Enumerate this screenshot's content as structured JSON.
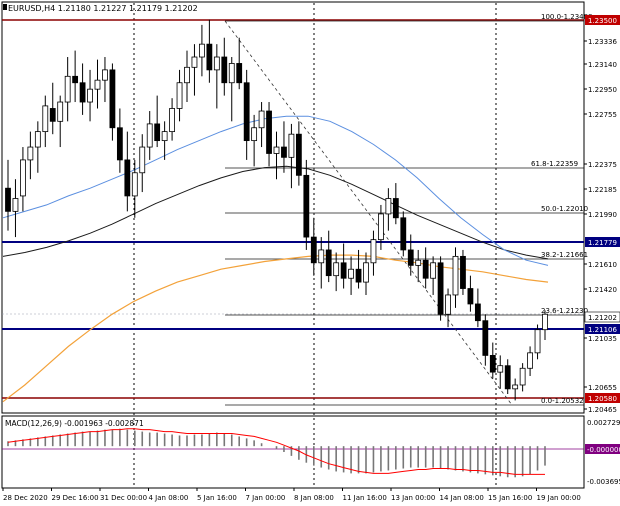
{
  "header": {
    "symbol_label": "EURUSD,H4  1.21180 1.21227 1.21179 1.21202"
  },
  "macd": {
    "label": "MACD(12,26,9) -0.001963 -0.002871"
  },
  "colors": {
    "bg": "#ffffff",
    "grid": "#000000",
    "candle": "#000000",
    "ma_blue": "#5b8fe0",
    "ma_black": "#1a1a1a",
    "ma_orange": "#f3a23a",
    "level_navy": "#000080",
    "level_red": "#8b0000",
    "fib": "#1a1a1a",
    "macd_signal": "#ff0000",
    "macd_zero": "#800080",
    "tag_navy_bg": "#000080",
    "tag_red_bg": "#c00000",
    "tag_text": "#ffffff"
  },
  "price_axis": {
    "labels": [
      "1.23336",
      "1.23140",
      "1.22950",
      "1.22755",
      "1.22375",
      "1.22185",
      "1.21990",
      "1.21610",
      "1.21420",
      "1.21035",
      "1.20655",
      "1.20465"
    ],
    "tags": [
      {
        "value": "1.23500",
        "style": "red"
      },
      {
        "value": "1.21779",
        "style": "navy"
      },
      {
        "value": "1.21202",
        "style": "plain"
      },
      {
        "value": "1.21106",
        "style": "navy"
      },
      {
        "value": "1.20580",
        "style": "red"
      }
    ]
  },
  "macd_axis": {
    "labels": [
      "0.002729",
      "-0.000000",
      "-0.003695"
    ]
  },
  "time_axis": {
    "labels": [
      "28 Dec 2020",
      "29 Dec 16:00",
      "31 Dec 00:00",
      "4 Jan 08:00",
      "5 Jan 16:00",
      "7 Jan 00:00",
      "8 Jan 08:00",
      "11 Jan 16:00",
      "13 Jan 00:00",
      "14 Jan 08:00",
      "15 Jan 16:00",
      "19 Jan 00:00"
    ]
  },
  "fib_levels": [
    {
      "label": "100.0-1.23488"
    },
    {
      "label": "61.8-1.22359"
    },
    {
      "label": "50.0-1.22010"
    },
    {
      "label": "38.2-1.21661"
    },
    {
      "label": "23.6-1.21230"
    },
    {
      "label": "0.0-1.20532"
    }
  ],
  "chart_data": {
    "type": "candlestick",
    "series_ohlc": [
      [
        1.2218,
        1.224,
        1.2185,
        1.22
      ],
      [
        1.22,
        1.2225,
        1.218,
        1.221
      ],
      [
        1.2212,
        1.225,
        1.22,
        1.224
      ],
      [
        1.224,
        1.2262,
        1.2225,
        1.225
      ],
      [
        1.225,
        1.227,
        1.223,
        1.2262
      ],
      [
        1.2262,
        1.229,
        1.225,
        1.2282
      ],
      [
        1.228,
        1.23,
        1.226,
        1.227
      ],
      [
        1.227,
        1.229,
        1.225,
        1.2285
      ],
      [
        1.2285,
        1.232,
        1.227,
        1.2305
      ],
      [
        1.2305,
        1.2325,
        1.2285,
        1.23
      ],
      [
        1.23,
        1.2315,
        1.2275,
        1.2285
      ],
      [
        1.2285,
        1.231,
        1.227,
        1.2295
      ],
      [
        1.2295,
        1.2318,
        1.228,
        1.2302
      ],
      [
        1.2302,
        1.232,
        1.2285,
        1.231
      ],
      [
        1.231,
        1.2315,
        1.2255,
        1.2265
      ],
      [
        1.2265,
        1.228,
        1.223,
        1.224
      ],
      [
        1.224,
        1.2262,
        1.22,
        1.2212
      ],
      [
        1.2212,
        1.224,
        1.2195,
        1.223
      ],
      [
        1.223,
        1.226,
        1.2215,
        1.225
      ],
      [
        1.225,
        1.2278,
        1.224,
        1.2268
      ],
      [
        1.2268,
        1.229,
        1.225,
        1.2255
      ],
      [
        1.2255,
        1.227,
        1.224,
        1.2262
      ],
      [
        1.2262,
        1.2288,
        1.2255,
        1.228
      ],
      [
        1.228,
        1.231,
        1.227,
        1.23
      ],
      [
        1.23,
        1.2325,
        1.2285,
        1.2312
      ],
      [
        1.2312,
        1.233,
        1.229,
        1.232
      ],
      [
        1.232,
        1.2345,
        1.2305,
        1.233
      ],
      [
        1.233,
        1.2349,
        1.23,
        1.231
      ],
      [
        1.231,
        1.233,
        1.228,
        1.232
      ],
      [
        1.232,
        1.2335,
        1.229,
        1.23
      ],
      [
        1.23,
        1.232,
        1.227,
        1.2315
      ],
      [
        1.2315,
        1.2335,
        1.2295,
        1.23
      ],
      [
        1.23,
        1.231,
        1.224,
        1.2255
      ],
      [
        1.2255,
        1.2275,
        1.2235,
        1.2265
      ],
      [
        1.2265,
        1.2285,
        1.225,
        1.2278
      ],
      [
        1.2278,
        1.2285,
        1.2235,
        1.2245
      ],
      [
        1.2245,
        1.2262,
        1.2225,
        1.225
      ],
      [
        1.225,
        1.227,
        1.223,
        1.2242
      ],
      [
        1.2242,
        1.2268,
        1.2218,
        1.226
      ],
      [
        1.226,
        1.227,
        1.222,
        1.2228
      ],
      [
        1.2228,
        1.224,
        1.217,
        1.218
      ],
      [
        1.218,
        1.2195,
        1.215,
        1.216
      ],
      [
        1.216,
        1.218,
        1.214,
        1.217
      ],
      [
        1.217,
        1.2185,
        1.2145,
        1.215
      ],
      [
        1.215,
        1.2168,
        1.2138,
        1.216
      ],
      [
        1.216,
        1.2175,
        1.214,
        1.2148
      ],
      [
        1.2148,
        1.2165,
        1.2135,
        1.2155
      ],
      [
        1.2155,
        1.217,
        1.214,
        1.2145
      ],
      [
        1.2145,
        1.2168,
        1.2135,
        1.216
      ],
      [
        1.216,
        1.2185,
        1.215,
        1.2178
      ],
      [
        1.2178,
        1.2205,
        1.217,
        1.2198
      ],
      [
        1.2198,
        1.2218,
        1.2185,
        1.221
      ],
      [
        1.221,
        1.2222,
        1.219,
        1.2195
      ],
      [
        1.2195,
        1.22,
        1.2165,
        1.217
      ],
      [
        1.217,
        1.2182,
        1.215,
        1.2158
      ],
      [
        1.2158,
        1.217,
        1.2145,
        1.2162
      ],
      [
        1.2162,
        1.2172,
        1.214,
        1.2148
      ],
      [
        1.2148,
        1.2165,
        1.2135,
        1.216
      ],
      [
        1.216,
        1.2165,
        1.2115,
        1.212
      ],
      [
        1.212,
        1.214,
        1.211,
        1.2135
      ],
      [
        1.2135,
        1.2172,
        1.2125,
        1.2165
      ],
      [
        1.2165,
        1.217,
        1.2135,
        1.214
      ],
      [
        1.214,
        1.215,
        1.2122,
        1.2128
      ],
      [
        1.2128,
        1.214,
        1.211,
        1.2115
      ],
      [
        1.2115,
        1.212,
        1.208,
        1.2088
      ],
      [
        1.2088,
        1.2098,
        1.207,
        1.2075
      ],
      [
        1.2075,
        1.2088,
        1.2062,
        1.208
      ],
      [
        1.208,
        1.2085,
        1.2058,
        1.2062
      ],
      [
        1.2062,
        1.207,
        1.2053,
        1.2065
      ],
      [
        1.2065,
        1.2082,
        1.206,
        1.2078
      ],
      [
        1.2078,
        1.2095,
        1.2072,
        1.209
      ],
      [
        1.209,
        1.2112,
        1.2085,
        1.2108
      ],
      [
        1.2108,
        1.2123,
        1.21,
        1.212
      ]
    ],
    "ma_blue": [
      1.2195,
      1.22,
      1.2205,
      1.2212,
      1.2218,
      1.2225,
      1.2232,
      1.224,
      1.2248,
      1.2255,
      1.2262,
      1.2268,
      1.2272,
      1.2274,
      1.2274,
      1.227,
      1.2262,
      1.2252,
      1.224,
      1.2226,
      1.221,
      1.2195,
      1.2182,
      1.217,
      1.2162,
      1.2158
    ],
    "ma_black": [
      1.2165,
      1.2168,
      1.2172,
      1.2177,
      1.2183,
      1.219,
      1.2198,
      1.2206,
      1.2213,
      1.222,
      1.2226,
      1.2231,
      1.2234,
      1.2235,
      1.2233,
      1.2228,
      1.2221,
      1.2213,
      1.2205,
      1.2197,
      1.219,
      1.2183,
      1.2176,
      1.217,
      1.2166,
      1.2163
    ],
    "ma_orange": [
      1.2052,
      1.2065,
      1.208,
      1.2095,
      1.2108,
      1.212,
      1.213,
      1.2138,
      1.2145,
      1.215,
      1.2155,
      1.2158,
      1.2161,
      1.2163,
      1.2165,
      1.2166,
      1.2166,
      1.2165,
      1.2162,
      1.216,
      1.2157,
      1.2155,
      1.2153,
      1.215,
      1.2147,
      1.2145
    ],
    "macd_hist": [
      0.0005,
      0.0006,
      0.0007,
      0.0008,
      0.0009,
      0.001,
      0.0011,
      0.0012,
      0.0013,
      0.0014,
      0.0015,
      0.0015,
      0.0016,
      0.0017,
      0.0017,
      0.0018,
      0.0017,
      0.0016,
      0.0015,
      0.0014,
      0.0014,
      0.0013,
      0.0012,
      0.0011,
      0.0011,
      0.0012,
      0.0012,
      0.0013,
      0.0014,
      0.0013,
      0.0012,
      0.001,
      0.0008,
      0.0006,
      0.0003,
      0.0,
      -0.0003,
      -0.0006,
      -0.001,
      -0.0014,
      -0.0017,
      -0.002,
      -0.0022,
      -0.0024,
      -0.0026,
      -0.0027,
      -0.0028,
      -0.0028,
      -0.0028,
      -0.0027,
      -0.0026,
      -0.0025,
      -0.0024,
      -0.0023,
      -0.0022,
      -0.0022,
      -0.0022,
      -0.0022,
      -0.0023,
      -0.0024,
      -0.0025,
      -0.0026,
      -0.0027,
      -0.0028,
      -0.0029,
      -0.003,
      -0.0031,
      -0.0032,
      -0.0032,
      -0.0031,
      -0.0029,
      -0.0025,
      -0.002
    ],
    "macd_signal": [
      0.0004,
      0.0005,
      0.0006,
      0.0007,
      0.0008,
      0.0009,
      0.001,
      0.0011,
      0.0012,
      0.0013,
      0.0014,
      0.0015,
      0.0015,
      0.0016,
      0.0017,
      0.0017,
      0.0018,
      0.0018,
      0.0017,
      0.0017,
      0.0016,
      0.0015,
      0.0015,
      0.0014,
      0.0013,
      0.0013,
      0.0013,
      0.0013,
      0.0013,
      0.0013,
      0.0013,
      0.0012,
      0.0011,
      0.001,
      0.0008,
      0.0006,
      0.0004,
      0.0001,
      -0.0002,
      -0.0005,
      -0.0009,
      -0.0012,
      -0.0015,
      -0.0018,
      -0.002,
      -0.0022,
      -0.0024,
      -0.0026,
      -0.0027,
      -0.0028,
      -0.0028,
      -0.0028,
      -0.0027,
      -0.0026,
      -0.0025,
      -0.0024,
      -0.0024,
      -0.0023,
      -0.0023,
      -0.0023,
      -0.0024,
      -0.0024,
      -0.0025,
      -0.0025,
      -0.0026,
      -0.0027,
      -0.0027,
      -0.0028,
      -0.0029,
      -0.0029,
      -0.0029,
      -0.0029,
      -0.0029
    ],
    "ylim": [
      1.2044,
      1.2362
    ],
    "macd_ylim": [
      -0.0042,
      0.003
    ]
  }
}
